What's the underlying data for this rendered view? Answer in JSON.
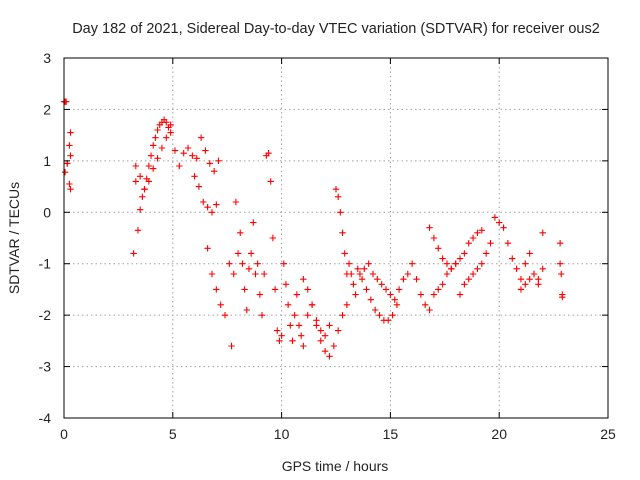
{
  "chart_data": {
    "type": "scatter",
    "title": "Day 182 of 2021, Sidereal Day-to-day VTEC variation (SDTVAR) for receiver ous2",
    "xlabel": "GPS time / hours",
    "ylabel": "SDTVAR / TECUs",
    "xlim": [
      0,
      25
    ],
    "ylim": [
      -4,
      3
    ],
    "xticks": [
      "0",
      "5",
      "10",
      "15",
      "20",
      "25"
    ],
    "yticks": [
      "-4",
      "-3",
      "-2",
      "-1",
      "0",
      "1",
      "2",
      "3"
    ],
    "xtick_values": [
      0,
      5,
      10,
      15,
      20,
      25
    ],
    "ytick_values": [
      -4,
      -3,
      -2,
      -1,
      0,
      1,
      2,
      3
    ],
    "grid": true,
    "marker": "plus",
    "color": "#ff0000",
    "series": [
      {
        "x": [
          0.0,
          0.05,
          0.1,
          0.15,
          0.25,
          0.3,
          0.05,
          0.15,
          0.25,
          0.3,
          0.3,
          3.2,
          3.3,
          3.4,
          3.5,
          3.6,
          3.7,
          3.8,
          3.9,
          4.0,
          4.1,
          4.2,
          4.3,
          4.4,
          4.5,
          4.6,
          4.7,
          4.8,
          4.9,
          3.3,
          3.5,
          3.7,
          3.9,
          4.1,
          4.3,
          4.5,
          4.7,
          4.9,
          5.1,
          5.3,
          5.5,
          5.7,
          5.9,
          6.1,
          6.3,
          6.5,
          6.7,
          6.9,
          7.1,
          6.0,
          6.2,
          6.4,
          6.6,
          6.8,
          7.0,
          6.6,
          6.8,
          7.0,
          7.2,
          7.4,
          7.6,
          7.7,
          7.8,
          7.9,
          8.0,
          8.1,
          8.2,
          8.3,
          8.4,
          8.5,
          8.6,
          8.7,
          8.8,
          8.9,
          9.0,
          9.1,
          9.2,
          9.3,
          9.4,
          9.5,
          9.6,
          9.7,
          9.8,
          9.9,
          10.0,
          10.1,
          10.2,
          10.3,
          10.4,
          10.5,
          10.6,
          10.7,
          10.8,
          10.9,
          11.0,
          11.2,
          11.4,
          11.6,
          11.8,
          12.0,
          12.2,
          12.4,
          12.6,
          12.8,
          13.0,
          11.0,
          11.2,
          11.4,
          11.6,
          11.8,
          12.0,
          12.2,
          12.5,
          12.6,
          12.7,
          12.8,
          12.9,
          13.0,
          13.1,
          13.2,
          13.3,
          13.4,
          13.5,
          13.7,
          13.9,
          14.1,
          14.3,
          14.5,
          14.7,
          14.9,
          15.1,
          15.3,
          13.6,
          13.8,
          14.0,
          14.2,
          14.4,
          14.6,
          14.8,
          15.0,
          15.2,
          15.4,
          15.6,
          15.8,
          16.0,
          16.2,
          16.4,
          16.6,
          16.8,
          17.0,
          17.2,
          17.4,
          17.6,
          17.8,
          18.0,
          16.8,
          17.0,
          17.2,
          17.4,
          17.6,
          17.8,
          18.0,
          18.2,
          18.4,
          18.6,
          18.8,
          19.0,
          19.2,
          18.2,
          18.4,
          18.6,
          18.8,
          19.0,
          19.2,
          19.4,
          19.6,
          19.8,
          20.0,
          20.2,
          20.4,
          20.6,
          20.8,
          21.0,
          21.2,
          21.4,
          21.6,
          21.8,
          22.0,
          21.0,
          21.2,
          21.4,
          21.6,
          21.8,
          22.0,
          22.8,
          22.8,
          22.85,
          22.9,
          22.9
        ],
        "y": [
          2.15,
          2.15,
          2.15,
          0.95,
          1.3,
          1.55,
          0.78,
          0.95,
          0.55,
          0.45,
          1.1,
          -0.8,
          0.6,
          -0.35,
          0.05,
          0.3,
          0.45,
          0.65,
          0.9,
          1.1,
          1.3,
          1.45,
          1.6,
          1.7,
          1.75,
          1.8,
          1.75,
          1.65,
          1.7,
          0.9,
          0.7,
          0.45,
          0.6,
          0.85,
          1.05,
          1.25,
          1.45,
          1.55,
          1.2,
          0.9,
          1.15,
          1.25,
          1.1,
          1.05,
          1.45,
          1.2,
          0.95,
          0.8,
          1.0,
          0.7,
          0.5,
          0.2,
          0.1,
          0.0,
          0.15,
          -0.7,
          -1.2,
          -1.5,
          -1.8,
          -2.0,
          -1.0,
          -2.6,
          -1.2,
          0.2,
          -0.8,
          -0.4,
          -1.0,
          -1.5,
          -1.9,
          -1.1,
          -0.8,
          -0.2,
          -1.2,
          -1.0,
          -1.6,
          -2.0,
          -1.2,
          1.1,
          1.15,
          0.6,
          -0.5,
          -1.5,
          -2.3,
          -2.5,
          -2.4,
          -1.0,
          -1.4,
          -1.8,
          -2.2,
          -2.5,
          -2.0,
          -1.6,
          -2.2,
          -2.4,
          -2.6,
          -2.0,
          -1.8,
          -2.2,
          -2.5,
          -2.7,
          -2.8,
          -2.6,
          -2.3,
          -2.0,
          -1.8,
          -1.3,
          -1.5,
          -1.8,
          -2.1,
          -2.3,
          -2.4,
          -2.2,
          0.45,
          0.3,
          0.0,
          -0.4,
          -0.8,
          -1.2,
          -1.0,
          -1.2,
          -1.4,
          -1.6,
          -1.1,
          -1.3,
          -1.5,
          -1.7,
          -1.9,
          -2.0,
          -2.1,
          -2.1,
          -2.0,
          -1.8,
          -1.2,
          -1.1,
          -1.0,
          -1.2,
          -1.3,
          -1.4,
          -1.5,
          -1.6,
          -1.7,
          -1.5,
          -1.3,
          -1.2,
          -1.0,
          -1.3,
          -1.6,
          -1.8,
          -1.9,
          -1.6,
          -1.5,
          -1.4,
          -1.2,
          -1.1,
          -1.0,
          -0.3,
          -0.5,
          -0.7,
          -0.9,
          -1.0,
          -1.1,
          -1.0,
          -0.9,
          -0.8,
          -0.6,
          -0.5,
          -0.4,
          -0.35,
          -1.6,
          -1.4,
          -1.3,
          -1.2,
          -1.1,
          -1.0,
          -0.8,
          -0.6,
          -0.1,
          -0.2,
          -0.3,
          -0.6,
          -0.9,
          -1.1,
          -1.3,
          -1.0,
          -0.8,
          -1.2,
          -1.3,
          -0.4,
          -1.5,
          -1.4,
          -1.3,
          -1.2,
          -1.4,
          -1.1,
          -0.6,
          -1.0,
          -1.2,
          -1.6,
          -1.65
        ]
      }
    ]
  }
}
